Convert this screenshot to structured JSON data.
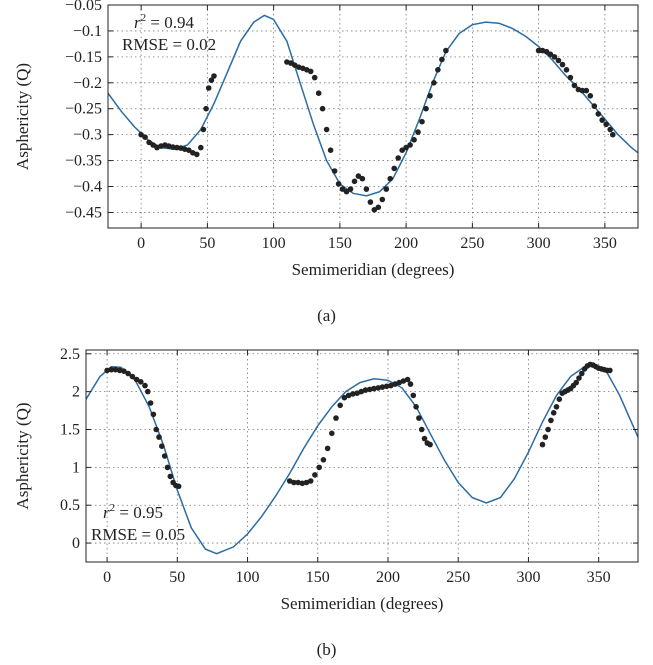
{
  "chart_data": [
    {
      "type": "scatter",
      "caption": "(a)",
      "xlabel": "Semimeridian (degrees)",
      "ylabel": "Asphericity (Q)",
      "xlim": [
        -25,
        375
      ],
      "ylim": [
        -0.48,
        -0.05
      ],
      "xticks": [
        0,
        50,
        100,
        150,
        200,
        250,
        300,
        350
      ],
      "yticks": [
        -0.45,
        -0.4,
        -0.35,
        -0.3,
        -0.25,
        -0.2,
        -0.15,
        -0.1,
        -0.05
      ],
      "ytick_labels": [
        "−0.45",
        "−0.4",
        "−0.35",
        "−0.3",
        "−0.25",
        "−0.2",
        "−0.15",
        "−0.1",
        "−0.05"
      ],
      "grid": true,
      "annotation": {
        "r2_prefix": "r",
        "r2_sup": "2",
        "r2_value": " = 0.94",
        "rmse": "RMSE = 0.02"
      },
      "colors": {
        "points": "#222222",
        "fit": "#2b6ca3"
      },
      "points": [
        [
          0,
          -0.3
        ],
        [
          3,
          -0.305
        ],
        [
          6,
          -0.315
        ],
        [
          9,
          -0.32
        ],
        [
          12,
          -0.325
        ],
        [
          15,
          -0.322
        ],
        [
          18,
          -0.32
        ],
        [
          21,
          -0.322
        ],
        [
          24,
          -0.324
        ],
        [
          27,
          -0.325
        ],
        [
          30,
          -0.326
        ],
        [
          33,
          -0.328
        ],
        [
          36,
          -0.33
        ],
        [
          39,
          -0.335
        ],
        [
          42,
          -0.338
        ],
        [
          45,
          -0.325
        ],
        [
          47,
          -0.29
        ],
        [
          49,
          -0.25
        ],
        [
          51,
          -0.21
        ],
        [
          53,
          -0.195
        ],
        [
          55,
          -0.187
        ],
        [
          110,
          -0.16
        ],
        [
          113,
          -0.162
        ],
        [
          116,
          -0.166
        ],
        [
          119,
          -0.17
        ],
        [
          122,
          -0.172
        ],
        [
          125,
          -0.175
        ],
        [
          128,
          -0.178
        ],
        [
          131,
          -0.19
        ],
        [
          134,
          -0.22
        ],
        [
          137,
          -0.25
        ],
        [
          140,
          -0.29
        ],
        [
          143,
          -0.33
        ],
        [
          146,
          -0.37
        ],
        [
          149,
          -0.395
        ],
        [
          152,
          -0.405
        ],
        [
          155,
          -0.41
        ],
        [
          158,
          -0.405
        ],
        [
          161,
          -0.39
        ],
        [
          164,
          -0.38
        ],
        [
          167,
          -0.385
        ],
        [
          170,
          -0.405
        ],
        [
          173,
          -0.43
        ],
        [
          176,
          -0.445
        ],
        [
          179,
          -0.44
        ],
        [
          182,
          -0.425
        ],
        [
          185,
          -0.405
        ],
        [
          188,
          -0.385
        ],
        [
          191,
          -0.365
        ],
        [
          194,
          -0.345
        ],
        [
          197,
          -0.33
        ],
        [
          200,
          -0.325
        ],
        [
          203,
          -0.32
        ],
        [
          206,
          -0.31
        ],
        [
          209,
          -0.295
        ],
        [
          212,
          -0.275
        ],
        [
          215,
          -0.25
        ],
        [
          218,
          -0.225
        ],
        [
          221,
          -0.2
        ],
        [
          224,
          -0.175
        ],
        [
          227,
          -0.155
        ],
        [
          230,
          -0.138
        ],
        [
          300,
          -0.138
        ],
        [
          303,
          -0.138
        ],
        [
          306,
          -0.14
        ],
        [
          309,
          -0.145
        ],
        [
          312,
          -0.15
        ],
        [
          315,
          -0.157
        ],
        [
          318,
          -0.165
        ],
        [
          321,
          -0.175
        ],
        [
          324,
          -0.19
        ],
        [
          327,
          -0.205
        ],
        [
          330,
          -0.213
        ],
        [
          333,
          -0.215
        ],
        [
          336,
          -0.215
        ],
        [
          339,
          -0.225
        ],
        [
          342,
          -0.245
        ],
        [
          345,
          -0.26
        ],
        [
          348,
          -0.272
        ],
        [
          351,
          -0.28
        ],
        [
          354,
          -0.29
        ],
        [
          356,
          -0.3
        ]
      ],
      "fit": [
        [
          -25,
          -0.22
        ],
        [
          -15,
          -0.255
        ],
        [
          -5,
          -0.285
        ],
        [
          5,
          -0.31
        ],
        [
          15,
          -0.325
        ],
        [
          25,
          -0.328
        ],
        [
          35,
          -0.32
        ],
        [
          45,
          -0.29
        ],
        [
          55,
          -0.24
        ],
        [
          65,
          -0.18
        ],
        [
          75,
          -0.12
        ],
        [
          85,
          -0.083
        ],
        [
          93,
          -0.07
        ],
        [
          100,
          -0.078
        ],
        [
          110,
          -0.12
        ],
        [
          120,
          -0.2
        ],
        [
          130,
          -0.28
        ],
        [
          140,
          -0.35
        ],
        [
          150,
          -0.395
        ],
        [
          160,
          -0.413
        ],
        [
          170,
          -0.418
        ],
        [
          180,
          -0.41
        ],
        [
          190,
          -0.385
        ],
        [
          200,
          -0.335
        ],
        [
          210,
          -0.27
        ],
        [
          220,
          -0.2
        ],
        [
          230,
          -0.14
        ],
        [
          240,
          -0.105
        ],
        [
          250,
          -0.088
        ],
        [
          260,
          -0.083
        ],
        [
          270,
          -0.085
        ],
        [
          280,
          -0.095
        ],
        [
          290,
          -0.11
        ],
        [
          300,
          -0.13
        ],
        [
          310,
          -0.155
        ],
        [
          320,
          -0.185
        ],
        [
          330,
          -0.21
        ],
        [
          340,
          -0.24
        ],
        [
          350,
          -0.27
        ],
        [
          360,
          -0.3
        ],
        [
          370,
          -0.325
        ],
        [
          375,
          -0.335
        ]
      ]
    },
    {
      "type": "scatter",
      "caption": "(b)",
      "xlabel": "Semimeridian (degrees)",
      "ylabel": "Asphericity (Q)",
      "xlim": [
        -15,
        378
      ],
      "ylim": [
        -0.25,
        2.55
      ],
      "xticks": [
        0,
        50,
        100,
        150,
        200,
        250,
        300,
        350
      ],
      "yticks": [
        0,
        0.5,
        1,
        1.5,
        2,
        2.5
      ],
      "ytick_labels": [
        "0",
        "0.5",
        "1",
        "1.5",
        "2",
        "2.5"
      ],
      "grid": true,
      "annotation": {
        "r2_prefix": "r",
        "r2_sup": "2",
        "r2_value": " = 0.95",
        "rmse": "RMSE = 0.05"
      },
      "colors": {
        "points": "#222222",
        "fit": "#2b6ca3"
      },
      "points": [
        [
          0,
          2.28
        ],
        [
          3,
          2.29
        ],
        [
          6,
          2.29
        ],
        [
          9,
          2.28
        ],
        [
          12,
          2.27
        ],
        [
          15,
          2.24
        ],
        [
          18,
          2.2
        ],
        [
          21,
          2.16
        ],
        [
          24,
          2.13
        ],
        [
          27,
          2.08
        ],
        [
          29,
          2.0
        ],
        [
          31,
          1.85
        ],
        [
          33,
          1.7
        ],
        [
          35,
          1.5
        ],
        [
          37,
          1.4
        ],
        [
          39,
          1.28
        ],
        [
          41,
          1.15
        ],
        [
          43,
          1.0
        ],
        [
          45,
          0.88
        ],
        [
          47,
          0.8
        ],
        [
          49,
          0.76
        ],
        [
          51,
          0.75
        ],
        [
          130,
          0.82
        ],
        [
          133,
          0.8
        ],
        [
          136,
          0.8
        ],
        [
          139,
          0.79
        ],
        [
          142,
          0.8
        ],
        [
          145,
          0.82
        ],
        [
          148,
          0.9
        ],
        [
          151,
          1.0
        ],
        [
          154,
          1.1
        ],
        [
          157,
          1.25
        ],
        [
          160,
          1.45
        ],
        [
          163,
          1.65
        ],
        [
          166,
          1.82
        ],
        [
          169,
          1.92
        ],
        [
          172,
          1.95
        ],
        [
          175,
          1.97
        ],
        [
          178,
          1.98
        ],
        [
          181,
          2.0
        ],
        [
          184,
          2.02
        ],
        [
          187,
          2.03
        ],
        [
          190,
          2.04
        ],
        [
          193,
          2.05
        ],
        [
          196,
          2.06
        ],
        [
          199,
          2.07
        ],
        [
          202,
          2.08
        ],
        [
          205,
          2.1
        ],
        [
          208,
          2.12
        ],
        [
          211,
          2.14
        ],
        [
          214,
          2.16
        ],
        [
          216,
          2.1
        ],
        [
          218,
          1.95
        ],
        [
          220,
          1.8
        ],
        [
          222,
          1.65
        ],
        [
          224,
          1.5
        ],
        [
          226,
          1.38
        ],
        [
          228,
          1.32
        ],
        [
          230,
          1.3
        ],
        [
          310,
          1.3
        ],
        [
          312,
          1.4
        ],
        [
          314,
          1.5
        ],
        [
          316,
          1.62
        ],
        [
          318,
          1.72
        ],
        [
          320,
          1.8
        ],
        [
          322,
          1.9
        ],
        [
          324,
          1.98
        ],
        [
          326,
          2.0
        ],
        [
          328,
          2.02
        ],
        [
          330,
          2.04
        ],
        [
          332,
          2.08
        ],
        [
          334,
          2.12
        ],
        [
          336,
          2.18
        ],
        [
          338,
          2.24
        ],
        [
          340,
          2.3
        ],
        [
          342,
          2.34
        ],
        [
          344,
          2.36
        ],
        [
          346,
          2.35
        ],
        [
          348,
          2.33
        ],
        [
          350,
          2.31
        ],
        [
          352,
          2.3
        ],
        [
          354,
          2.29
        ],
        [
          356,
          2.28
        ],
        [
          358,
          2.28
        ]
      ],
      "fit": [
        [
          -15,
          1.9
        ],
        [
          -5,
          2.2
        ],
        [
          3,
          2.33
        ],
        [
          10,
          2.32
        ],
        [
          20,
          2.15
        ],
        [
          30,
          1.8
        ],
        [
          40,
          1.3
        ],
        [
          50,
          0.7
        ],
        [
          60,
          0.2
        ],
        [
          70,
          -0.08
        ],
        [
          78,
          -0.14
        ],
        [
          90,
          -0.05
        ],
        [
          100,
          0.12
        ],
        [
          110,
          0.35
        ],
        [
          120,
          0.62
        ],
        [
          130,
          0.92
        ],
        [
          140,
          1.25
        ],
        [
          150,
          1.55
        ],
        [
          160,
          1.8
        ],
        [
          170,
          2.0
        ],
        [
          180,
          2.12
        ],
        [
          190,
          2.17
        ],
        [
          200,
          2.15
        ],
        [
          210,
          2.05
        ],
        [
          220,
          1.8
        ],
        [
          230,
          1.45
        ],
        [
          240,
          1.1
        ],
        [
          250,
          0.8
        ],
        [
          260,
          0.6
        ],
        [
          270,
          0.53
        ],
        [
          280,
          0.6
        ],
        [
          290,
          0.85
        ],
        [
          300,
          1.2
        ],
        [
          310,
          1.6
        ],
        [
          320,
          1.95
        ],
        [
          330,
          2.2
        ],
        [
          340,
          2.33
        ],
        [
          348,
          2.34
        ],
        [
          356,
          2.25
        ],
        [
          365,
          1.95
        ],
        [
          372,
          1.65
        ],
        [
          378,
          1.4
        ]
      ]
    }
  ]
}
